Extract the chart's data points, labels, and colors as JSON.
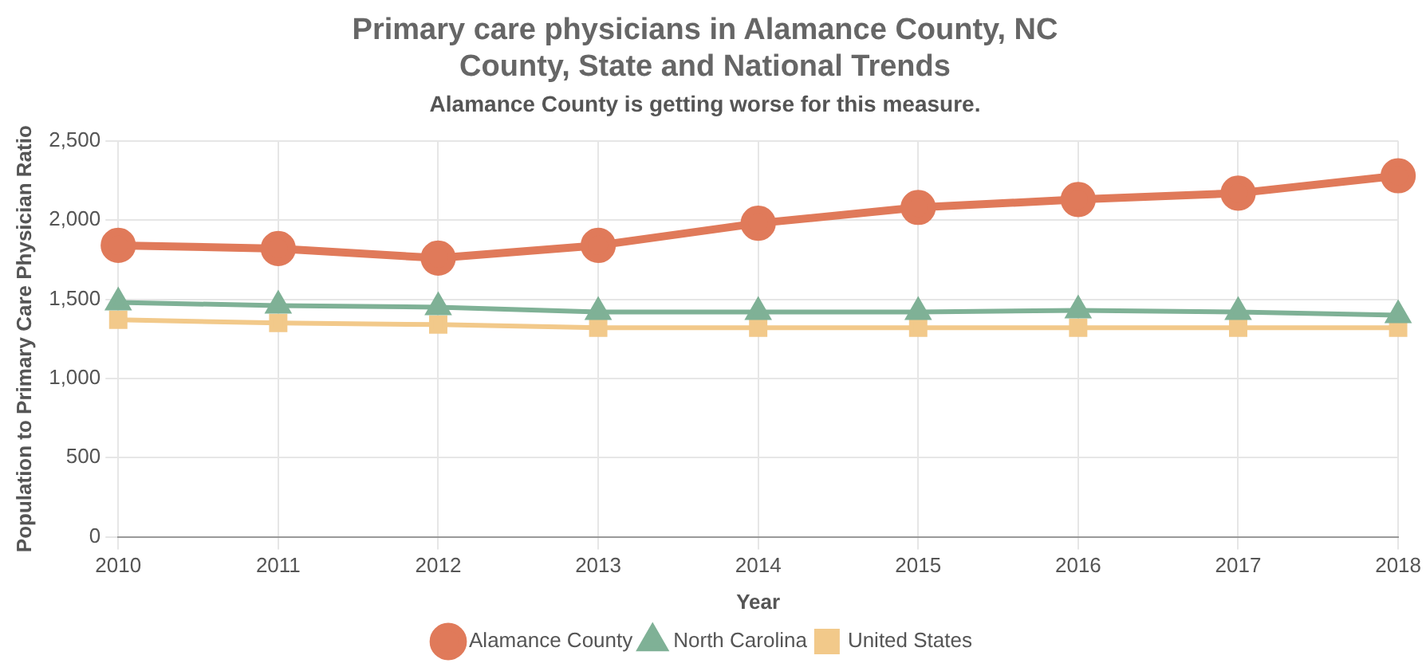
{
  "chart_data": {
    "type": "line",
    "title": "Primary care physicians in Alamance County, NC\nCounty, State and National Trends",
    "subtitle": "Alamance County is getting worse for this measure.",
    "xlabel": "Year",
    "ylabel": "Population to Primary Care Physician Ratio",
    "categories": [
      "2010",
      "2011",
      "2012",
      "2013",
      "2014",
      "2015",
      "2016",
      "2017",
      "2018"
    ],
    "series": [
      {
        "name": "Alamance County",
        "color": "#e07a5a",
        "marker": "circle",
        "values": [
          1840,
          1820,
          1760,
          1840,
          1980,
          2080,
          2130,
          2170,
          2280
        ]
      },
      {
        "name": "North Carolina",
        "color": "#7fb196",
        "marker": "triangle",
        "values": [
          1480,
          1460,
          1450,
          1420,
          1420,
          1420,
          1430,
          1420,
          1400
        ]
      },
      {
        "name": "United States",
        "color": "#f2c98a",
        "marker": "square",
        "values": [
          1370,
          1350,
          1340,
          1320,
          1320,
          1320,
          1320,
          1320,
          1320
        ]
      }
    ],
    "ylim": [
      0,
      2500
    ],
    "yticks": [
      0,
      500,
      {
        "value": 1000,
        "label": "1,000"
      },
      {
        "value": 1500,
        "label": "1,500"
      },
      {
        "value": 2000,
        "label": "2,000"
      },
      {
        "value": 2500,
        "label": "2,500"
      }
    ],
    "grid": true,
    "legend": "bottom"
  }
}
